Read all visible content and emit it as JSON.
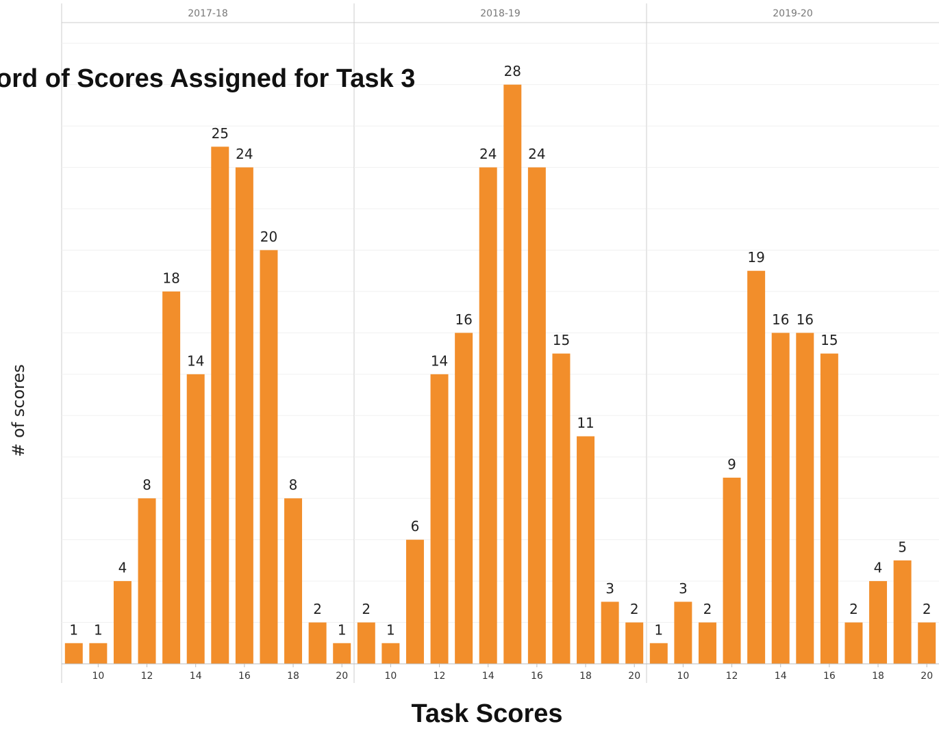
{
  "chart_data": {
    "type": "bar",
    "title": "ord of Scores Assigned for Task 3",
    "x_label": "Task Scores",
    "y_label": "# of scores",
    "color": "#f28e2b",
    "x": [
      9,
      10,
      11,
      12,
      13,
      14,
      15,
      16,
      17,
      18,
      19,
      20
    ],
    "xlim": [
      8.5,
      20.5
    ],
    "xticks": [
      10,
      12,
      14,
      16,
      18,
      20
    ],
    "ylim": [
      0,
      31
    ],
    "yticks": [
      0,
      2,
      4,
      6,
      8,
      10,
      12,
      14,
      16,
      18,
      20,
      22,
      24,
      26,
      28,
      30
    ],
    "grid": true,
    "panels": [
      {
        "title": "2017-18",
        "values": [
          1,
          1,
          4,
          8,
          18,
          14,
          25,
          24,
          20,
          8,
          2,
          1
        ]
      },
      {
        "title": "2018-19",
        "values": [
          2,
          1,
          6,
          14,
          16,
          24,
          28,
          24,
          15,
          11,
          3,
          2
        ]
      },
      {
        "title": "2019-20",
        "values": [
          1,
          3,
          2,
          9,
          19,
          16,
          16,
          15,
          2,
          4,
          5,
          2
        ]
      }
    ]
  }
}
